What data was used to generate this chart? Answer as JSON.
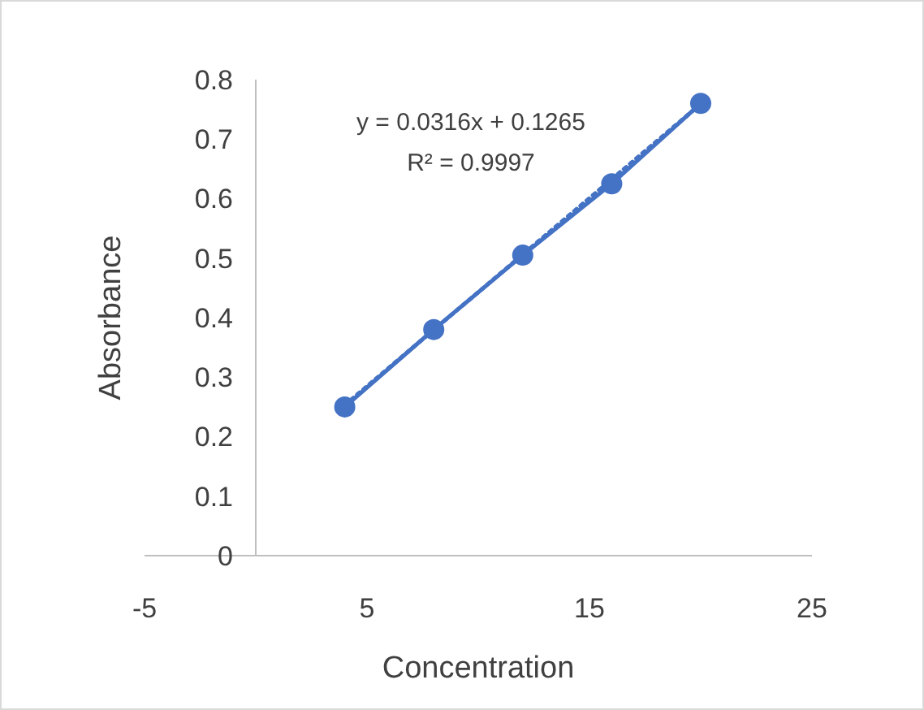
{
  "chart_data": {
    "type": "line",
    "xlabel": "Concentration",
    "ylabel": "Absorbance",
    "xlim": [
      -5,
      25
    ],
    "xticks": [
      -5,
      5,
      15,
      25
    ],
    "ylim": [
      0,
      0.8
    ],
    "yticks": [
      0,
      0.1,
      0.2,
      0.3,
      0.4,
      0.5,
      0.6,
      0.7,
      0.8
    ],
    "grid": false,
    "series": [
      {
        "color": "#4472c4",
        "x": [
          4,
          8,
          12,
          16,
          20
        ],
        "values": [
          0.25,
          0.38,
          0.505,
          0.625,
          0.76
        ],
        "marker": "circle",
        "line_style": "solid"
      },
      {
        "color": "#4472c4",
        "x": [
          4,
          20
        ],
        "values": [
          0.253,
          0.759
        ],
        "marker": "none",
        "line_style": "dotted"
      }
    ],
    "annotations": [
      "y = 0.0316x + 0.1265",
      "R² = 0.9997"
    ]
  }
}
